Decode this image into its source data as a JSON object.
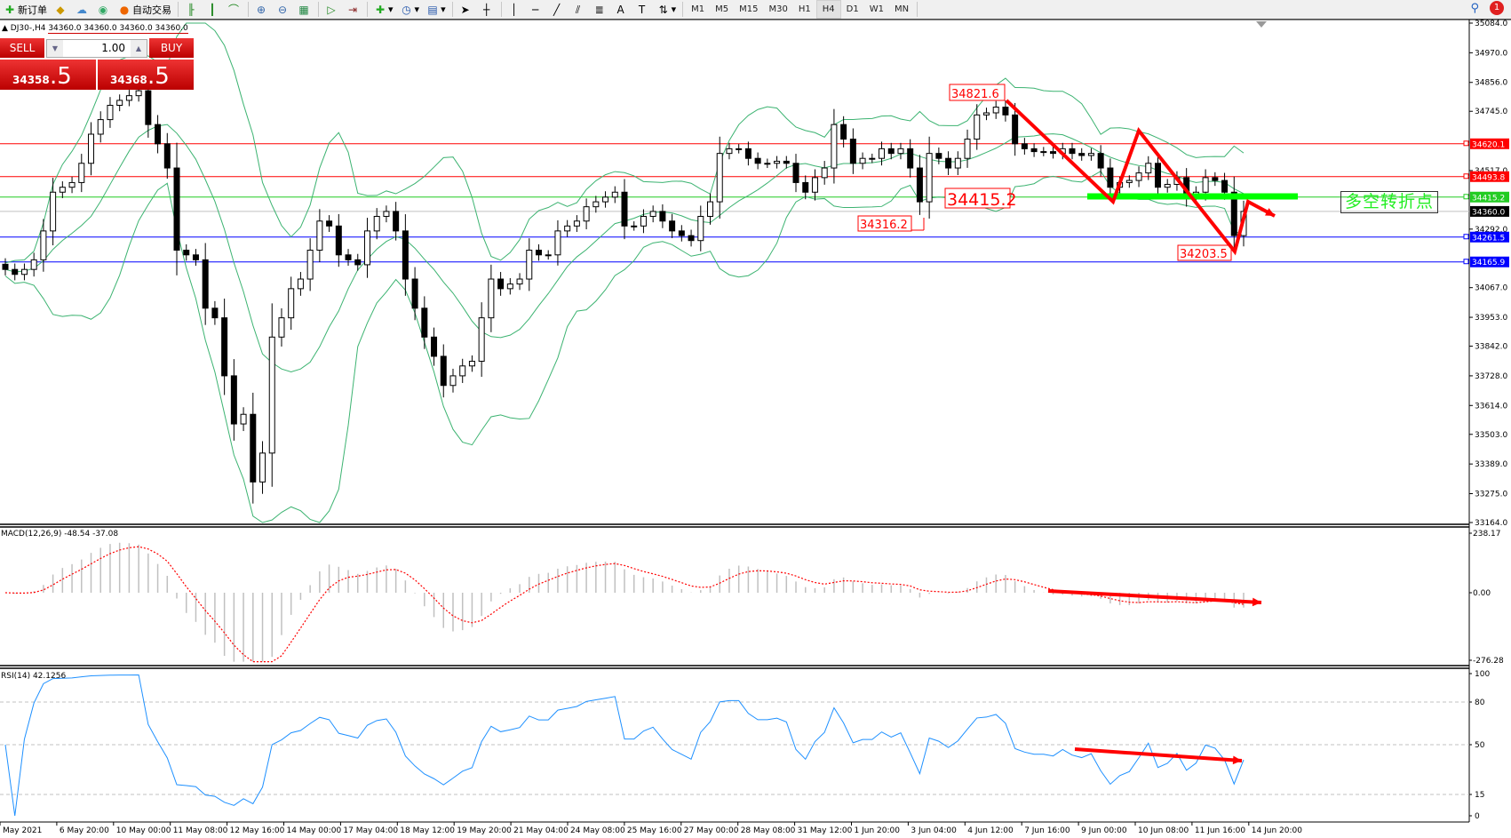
{
  "toolbar": {
    "new_order": "新订单",
    "auto_trading": "自动交易",
    "timeframes": [
      "M1",
      "M5",
      "M15",
      "M30",
      "H1",
      "H4",
      "D1",
      "W1",
      "MN"
    ],
    "active_timeframe": "H4",
    "notification_count": "1",
    "icons": [
      "new-order-icon",
      "history-icon",
      "cloud-icon",
      "signal-icon",
      "auto-trading-icon",
      "bar-chart-icon",
      "candle-chart-icon",
      "line-chart-icon",
      "zoom-in-icon",
      "zoom-out-icon",
      "tile-windows-icon",
      "autoscroll-icon",
      "chart-shift-icon",
      "indicators-icon",
      "periods-icon",
      "templates-icon",
      "cursor-icon",
      "crosshair-icon",
      "vertical-line-icon",
      "horizontal-line-icon",
      "trend-line-icon",
      "equidistant-channel-icon",
      "fibonacci-icon",
      "text-icon",
      "text-label-icon",
      "arrows-icon",
      "search-icon",
      "notification-icon"
    ]
  },
  "chart_header": {
    "symbol": "DJ30-,H4",
    "ohlc": "34360.0 34360.0 34360.0 34360.0"
  },
  "trade_panel": {
    "sell_label": "SELL",
    "buy_label": "BUY",
    "lot": "1.00",
    "sell_price_main": "34358",
    "sell_price_frac": ".5",
    "buy_price_main": "34368",
    "buy_price_frac": ".5"
  },
  "chart_data": {
    "type": "candlestick",
    "symbol": "DJ30-",
    "timeframe": "H4",
    "ylim": [
      33164.0,
      35084.0
    ],
    "price_ticks": [
      "35084.0",
      "34970.0",
      "34856.0",
      "34745.0",
      "34517.0",
      "34292.0",
      "34067.0",
      "33953.0",
      "33842.0",
      "33728.0",
      "33614.0",
      "33503.0",
      "33389.0",
      "33275.0",
      "33164.0"
    ],
    "x_tick_labels": [
      "May 2021",
      "6 May 20:00",
      "10 May 00:00",
      "11 May 08:00",
      "12 May 16:00",
      "14 May 00:00",
      "17 May 04:00",
      "18 May 12:00",
      "19 May 20:00",
      "21 May 04:00",
      "24 May 08:00",
      "25 May 16:00",
      "27 May 00:00",
      "28 May 08:00",
      "31 May 12:00",
      "1 Jun 20:00",
      "3 Jun 04:00",
      "4 Jun 12:00",
      "7 Jun 16:00",
      "9 Jun 00:00",
      "10 Jun 08:00",
      "11 Jun 16:00",
      "14 Jun 20:00"
    ],
    "close": [
      34137,
      34118,
      34137,
      34174,
      34285,
      34434,
      34453,
      34471,
      34545,
      34657,
      34713,
      34768,
      34787,
      34805,
      34824,
      34694,
      34620,
      34527,
      34211,
      34193,
      34174,
      33988,
      33951,
      33728,
      33543,
      33580,
      33320,
      33431,
      33877,
      33951,
      34063,
      34100,
      34211,
      34323,
      34304,
      34193,
      34174,
      34155,
      34285,
      34341,
      34360,
      34285,
      34100,
      33988,
      33877,
      33803,
      33691,
      33728,
      33766,
      33784,
      33951,
      34100,
      34063,
      34081,
      34100,
      34211,
      34193,
      34193,
      34285,
      34304,
      34323,
      34378,
      34397,
      34415,
      34434,
      34304,
      34304,
      34341,
      34360,
      34323,
      34285,
      34267,
      34248,
      34341,
      34397,
      34583,
      34601,
      34601,
      34564,
      34545,
      34545,
      34553,
      34545,
      34471,
      34434,
      34490,
      34527,
      34694,
      34638,
      34545,
      34564,
      34564,
      34601,
      34583,
      34601,
      34527,
      34397,
      34583,
      34564,
      34527,
      34564,
      34638,
      34731,
      34739,
      34761,
      34731,
      34620,
      34601,
      34590,
      34590,
      34583,
      34601,
      34583,
      34575,
      34583,
      34527,
      34453,
      34471,
      34479,
      34508,
      34545,
      34453,
      34464,
      34490,
      34415,
      34434,
      34490,
      34479,
      34434,
      34267,
      34360
    ],
    "bollinger_bands": true,
    "horizontal_lines": [
      {
        "price": "34620.1",
        "color": "#ff0000"
      },
      {
        "price": "34493.8",
        "color": "#ff0000"
      },
      {
        "price": "34415.2",
        "color": "#22cc22"
      },
      {
        "price": "34360.0",
        "color": "#000000"
      },
      {
        "price": "34261.5",
        "color": "#0000ff"
      },
      {
        "price": "34165.9",
        "color": "#0000ff"
      }
    ],
    "annotations": [
      "34821.6",
      "34415.2",
      "34316.2",
      "34203.5"
    ],
    "turning_point_label": "多空转折点",
    "macd": {
      "title": "MACD(12,26,9) -48.54 -37.08",
      "ylim": [
        -276.28,
        238.17
      ],
      "ticks": [
        "238.17",
        "0.00",
        "-276.28"
      ]
    },
    "rsi": {
      "title": "RSI(14) 42.1256",
      "ylim": [
        0,
        100
      ],
      "ticks": [
        "100",
        "80",
        "50",
        "15",
        "0"
      ],
      "levels": [
        80,
        50,
        15
      ]
    },
    "colors": {
      "bull_candle": "#ffffff",
      "bear_candle": "#000000",
      "bands": "#3cb371",
      "signal": "#ff0000",
      "histogram": "#c0c0c0",
      "rsi": "#1e90ff",
      "arrows": "#ff0000",
      "turning_line": "#00ff00"
    }
  }
}
